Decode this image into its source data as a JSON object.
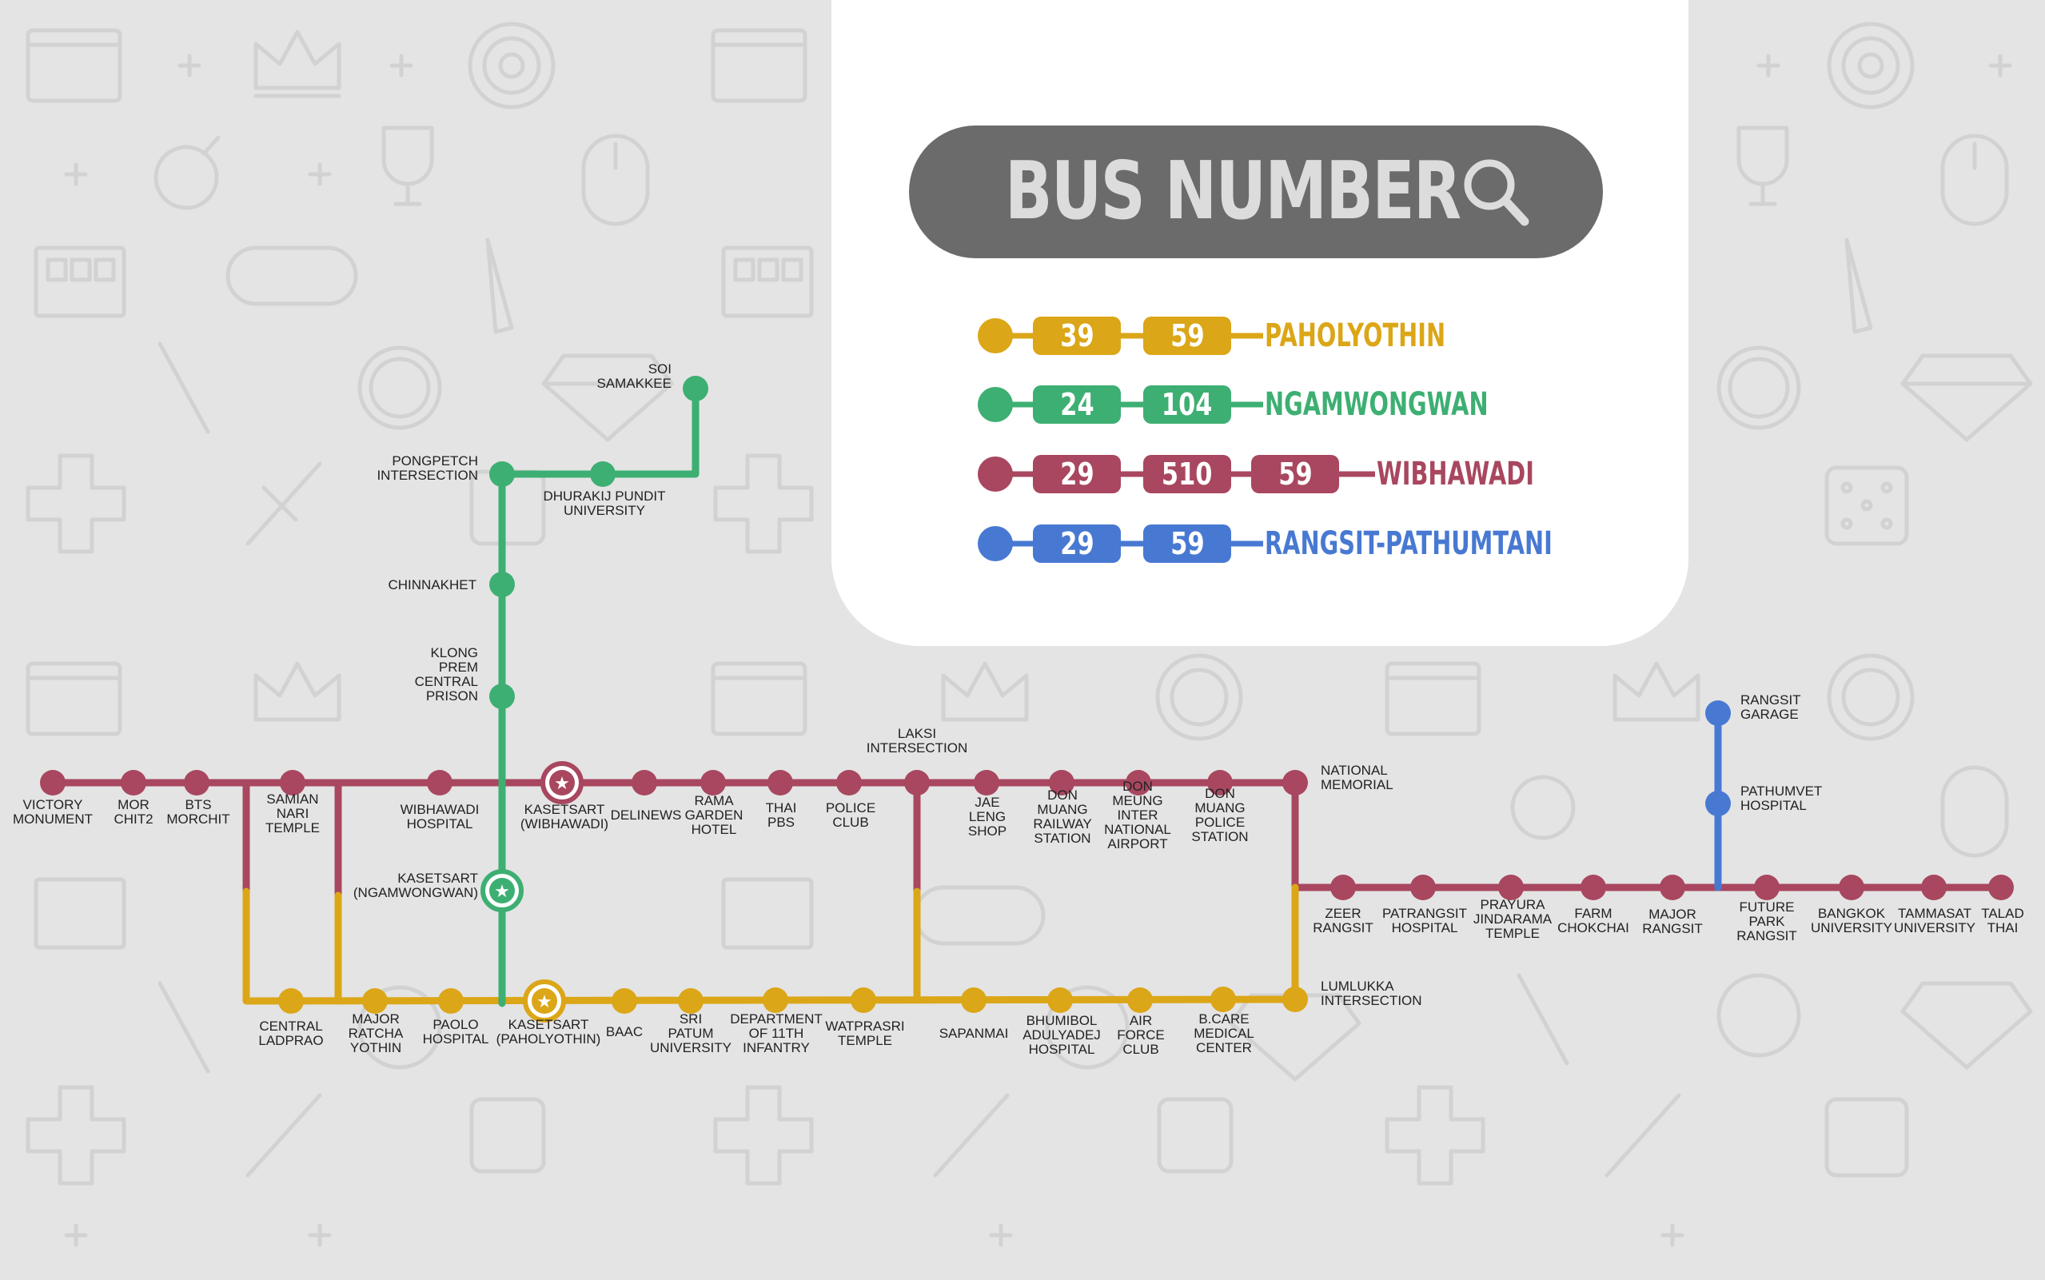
{
  "header": {
    "title": "BUS NUMBER"
  },
  "icons": {
    "search": "search-icon"
  },
  "colors": {
    "background": "#e4e4e4",
    "pattern": "#d0d0d0",
    "card": "#ffffff",
    "search_bar": "#6b6b6b",
    "search_text": "#dcdcdc",
    "paholyothin": "#dba617",
    "ngamwongwan": "#3daf72",
    "wibhawadi": "#a8475f",
    "rangsit": "#4879d2"
  },
  "legend": [
    {
      "name": "PAHOLYOTHIN",
      "color": "#dba617",
      "buses": [
        "39",
        "59"
      ]
    },
    {
      "name": "NGAMWONGWAN",
      "color": "#3daf72",
      "buses": [
        "24",
        "104"
      ]
    },
    {
      "name": "WIBHAWADI",
      "color": "#a8475f",
      "buses": [
        "29",
        "510",
        "59"
      ]
    },
    {
      "name": "RANGSIT-PATHUMTANI",
      "color": "#4879d2",
      "buses": [
        "29",
        "59"
      ]
    }
  ],
  "stations": {
    "victory_monument": "VICTORY\nMONUMENT",
    "mor_chit2": "MOR\nCHIT2",
    "bts_morchit": "BTS\nMORCHIT",
    "samian_nari_temple": "SAMIAN\nNARI\nTEMPLE",
    "wibhawadi_hospital": "WIBHAWADI\nHOSPITAL",
    "kasetsart_wibhawadi": "KASETSART\n(WIBHAWADI)",
    "delinews": "DELINEWS",
    "rama_garden_hotel": "RAMA\nGARDEN\nHOTEL",
    "thai_pbs": "THAI\nPBS",
    "police_club": "POLICE\nCLUB",
    "laksi_intersection": "LAKSI\nINTERSECTION",
    "jae_leng_shop": "JAE\nLENG\nSHOP",
    "don_muang_railway": "DON\nMUANG\nRAILWAY\nSTATION",
    "don_meung_airport": "DON\nMEUNG\nINTER\nNATIONAL\nAIRPORT",
    "don_muang_police": "DON\nMUANG\nPOLICE\nSTATION",
    "national_memorial": "NATIONAL\nMEMORIAL",
    "zeer_rangsit": "ZEER\nRANGSIT",
    "patrangsit_hospital": "PATRANGSIT\nHOSPITAL",
    "prayura_temple": "PRAYURA\nJINDARAMA\nTEMPLE",
    "farm_chokchai": "FARM\nCHOKCHAI",
    "major_rangsit": "MAJOR\nRANGSIT",
    "future_park": "FUTURE\nPARK\nRANGSIT",
    "bangkok_university": "BANGKOK\nUNIVERSITY",
    "tammasat_university": "TAMMASAT\nUNIVERSITY",
    "talad_thai": "TALAD\nTHAI",
    "rangsit_garage": "RANGSIT\nGARAGE",
    "pathumvet_hospital": "PATHUMVET\nHOSPITAL",
    "soi_samakkee": "SOI\nSAMAKKEE",
    "pongpetch": "PONGPETCH\nINTERSECTION",
    "dhurakij": "DHURAKIJ PUNDIT\nUNIVERSITY",
    "chinnakhet": "CHINNAKHET",
    "klong_prem": "KLONG\nPREM\nCENTRAL\nPRISON",
    "kasetsart_ngamwongwan": "KASETSART\n(NGAMWONGWAN)",
    "central_ladprao": "CENTRAL\nLADPRAO",
    "major_ratchayothin": "MAJOR\nRATCHA\nYOTHIN",
    "paolo_hospital": "PAOLO\nHOSPITAL",
    "kasetsart_paholyothin": "KASETSART\n(PAHOLYOTHIN)",
    "baac": "BAAC",
    "sri_patum": "SRI\nPATUM\nUNIVERSITY",
    "dept_11th_infantry": "DEPARTMENT\nOF 11TH\nINFANTRY",
    "watprasri": "WATPRASRI\nTEMPLE",
    "sapanmai": "SAPANMAI",
    "bhumibol": "BHUMIBOL\nADULYADEJ\nHOSPITAL",
    "air_force_club": "AIR\nFORCE\nCLUB",
    "bcare": "B.CARE\nMEDICAL\nCENTER",
    "lumlukka": "LUMLUKKA\nINTERSECTION"
  }
}
